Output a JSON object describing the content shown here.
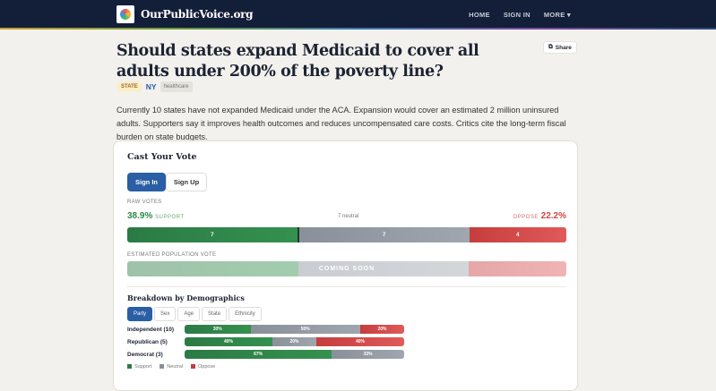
{
  "nav": {
    "brand": "OurPublicVoice.org",
    "links": [
      "HOME",
      "SIGN IN",
      "MORE ▾"
    ]
  },
  "question": {
    "title": "Should states expand Medicaid to cover all adults under 200% of the poverty line?",
    "share_label": "Share",
    "tags": {
      "level": "STATE",
      "state": "NY",
      "topic": "healthcare"
    },
    "description": "Currently 10 states have not expanded Medicaid under the ACA. Expansion would cover an estimated 2 million uninsured adults. Supporters say it improves health outcomes and reduces uncompensated care costs. Critics cite the long-term fiscal burden on state budgets."
  },
  "vote": {
    "title": "Cast Your Vote",
    "sign_in": "Sign In",
    "sign_up": "Sign Up",
    "raw_label": "RAW VOTES",
    "support_pct": "38.9%",
    "support_label": "SUPPORT",
    "neutral_text": "7 neutral",
    "oppose_label": "OPPOSE",
    "oppose_pct": "22.2%",
    "counts": {
      "support": 7,
      "neutral": 7,
      "oppose": 4
    },
    "est_label": "ESTIMATED POPULATION VOTE",
    "coming_soon": "COMING SOON"
  },
  "breakdown": {
    "title": "Breakdown by Demographics",
    "tabs": [
      "Party",
      "Sex",
      "Age",
      "State",
      "Ethnicity"
    ],
    "active_tab": "Party",
    "rows": [
      {
        "label": "Independent (10)",
        "support": 30,
        "neutral": 50,
        "oppose": 20,
        "s": "30%",
        "n": "50%",
        "o": "20%"
      },
      {
        "label": "Republican (5)",
        "support": 40,
        "neutral": 20,
        "oppose": 40,
        "s": "40%",
        "n": "20%",
        "o": "40%"
      },
      {
        "label": "Democrat (3)",
        "support": 67,
        "neutral": 33,
        "oppose": 0,
        "s": "67%",
        "n": "33%",
        "o": ""
      }
    ],
    "legend": [
      "Support",
      "Neutral",
      "Oppose"
    ]
  },
  "colors": {
    "support": "#2c7a45",
    "neutral": "#8a909a",
    "oppose": "#c63d3d",
    "primary": "#2a5ea5",
    "nav": "#131e38"
  }
}
